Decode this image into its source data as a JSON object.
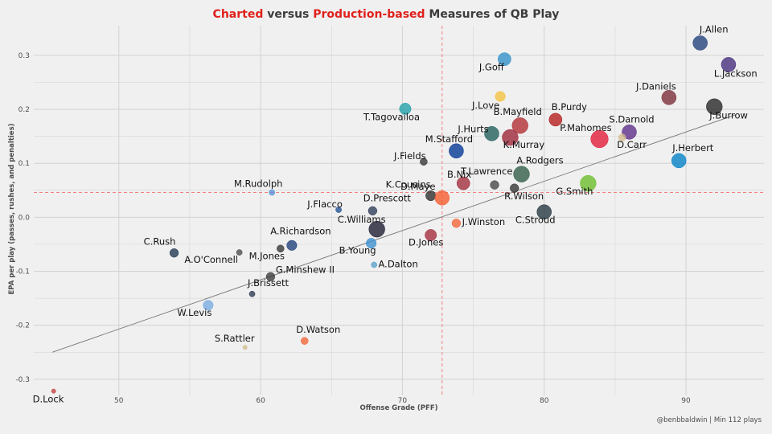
{
  "title": {
    "part1": "Charted",
    "part2": " versus ",
    "part3": "Production-based",
    "part4": " Measures of QB Play"
  },
  "footnote": "@benbbaldwin | Min 112 plays",
  "colors": {
    "title_accent": "#e0201c",
    "reference_line": "#f08080",
    "trend_line": "#777777",
    "grid": "#d2d2d2"
  },
  "chart_data": {
    "type": "scatter",
    "title": "Charted versus Production-based Measures of QB Play",
    "xlabel": "Offense Grade (PFF)",
    "ylabel": "EPA per play (passes, rushes, and penalties)",
    "xlim": [
      44,
      95.5
    ],
    "ylim": [
      -0.33,
      0.355
    ],
    "x_ticks": [
      50,
      60,
      70,
      80,
      90
    ],
    "y_ticks": [
      -0.3,
      -0.2,
      -0.1,
      0.0,
      0.1,
      0.2,
      0.3
    ],
    "x_tick_labels": [
      "50",
      "60",
      "70",
      "80",
      "90"
    ],
    "y_tick_labels": [
      "-0.3",
      "-0.2",
      "-0.1",
      "0.0",
      "0.1",
      "0.2",
      "0.3"
    ],
    "grid": true,
    "reference_lines": {
      "x_mean": 72.8,
      "y_mean": 0.046
    },
    "trend_line": {
      "x": [
        45.3,
        93.5
      ],
      "y": [
        -0.25,
        0.19
      ]
    },
    "points": [
      {
        "label": "J.Allen",
        "x": 91.0,
        "y": 0.323,
        "color": "#1f3f7a",
        "size": 10
      },
      {
        "label": "L.Jackson",
        "x": 93.0,
        "y": 0.283,
        "color": "#442a7a",
        "size": 10
      },
      {
        "label": "J.Goff",
        "x": 77.2,
        "y": 0.293,
        "color": "#2f8fc8",
        "size": 9
      },
      {
        "label": "J.Love",
        "x": 76.9,
        "y": 0.224,
        "color": "#f4c23d",
        "size": 7
      },
      {
        "label": "J.Daniels",
        "x": 88.8,
        "y": 0.222,
        "color": "#7a2a35",
        "size": 10
      },
      {
        "label": "J.Burrow",
        "x": 92.0,
        "y": 0.205,
        "color": "#222222",
        "size": 11
      },
      {
        "label": "T.Tagovailoa",
        "x": 70.2,
        "y": 0.201,
        "color": "#1fa1a8",
        "size": 8
      },
      {
        "label": "B.Purdy",
        "x": 80.8,
        "y": 0.181,
        "color": "#b31a1a",
        "size": 9
      },
      {
        "label": "B.Mayfield",
        "x": 78.3,
        "y": 0.17,
        "color": "#b02a30",
        "size": 11
      },
      {
        "label": "S.Darnold",
        "x": 86.0,
        "y": 0.158,
        "color": "#5b2a86",
        "size": 10
      },
      {
        "label": "J.Hurts",
        "x": 76.3,
        "y": 0.155,
        "color": "#1e5c5a",
        "size": 10
      },
      {
        "label": "K.Murray",
        "x": 77.6,
        "y": 0.148,
        "color": "#9b2235",
        "size": 11
      },
      {
        "label": "P.Mahomes",
        "x": 83.9,
        "y": 0.145,
        "color": "#e31837",
        "size": 12
      },
      {
        "label": "D.Carr",
        "x": 85.5,
        "y": 0.148,
        "color": "#d3bc8d",
        "size": 5
      },
      {
        "label": "M.Stafford",
        "x": 73.8,
        "y": 0.123,
        "color": "#003594",
        "size": 10
      },
      {
        "label": "J.Herbert",
        "x": 89.5,
        "y": 0.105,
        "color": "#0080c6",
        "size": 10
      },
      {
        "label": "J.Fields",
        "x": 71.5,
        "y": 0.103,
        "color": "#333333",
        "size": 5
      },
      {
        "label": "A.Rodgers",
        "x": 78.4,
        "y": 0.08,
        "color": "#2e5a43",
        "size": 11
      },
      {
        "label": "K.Cousins",
        "x": 72.0,
        "y": 0.04,
        "color": "#2a2a2a",
        "size": 7
      },
      {
        "label": "T.Lawrence",
        "x": 74.3,
        "y": 0.063,
        "color": "#a02a3a",
        "size": 9
      },
      {
        "label": "G.Smith",
        "x": 83.1,
        "y": 0.063,
        "color": "#69be28",
        "size": 11
      },
      {
        "label": "R.Wilson",
        "x": 77.9,
        "y": 0.054,
        "color": "#333333",
        "size": 6
      },
      {
        "label": "D.Maye",
        "x": 72.8,
        "y": 0.036,
        "color": "#f55a2a",
        "size": 10
      },
      {
        "label": "B.Nix",
        "x": 76.5,
        "y": 0.06,
        "color": "#444444",
        "size": 6
      },
      {
        "label": "M.Rudolph",
        "x": 60.8,
        "y": 0.046,
        "color": "#5a8ed8",
        "size": 4
      },
      {
        "label": "J.Flacco",
        "x": 65.5,
        "y": 0.014,
        "color": "#1f4f8f",
        "size": 4
      },
      {
        "label": "D.Prescott",
        "x": 67.9,
        "y": 0.012,
        "color": "#2a3a55",
        "size": 6
      },
      {
        "label": "C.Stroud",
        "x": 80.0,
        "y": 0.01,
        "color": "#22343d",
        "size": 10
      },
      {
        "label": "J.Winston",
        "x": 73.8,
        "y": -0.011,
        "color": "#f26436",
        "size": 6
      },
      {
        "label": "C.Williams",
        "x": 68.2,
        "y": -0.022,
        "color": "#1a1a2e",
        "size": 11
      },
      {
        "label": "D.Jones",
        "x": 72.0,
        "y": -0.033,
        "color": "#a32a3a",
        "size": 8
      },
      {
        "label": "C.Rush",
        "x": 53.9,
        "y": -0.066,
        "color": "#1f3550",
        "size": 6
      },
      {
        "label": "A.O'Connell",
        "x": 58.5,
        "y": -0.065,
        "color": "#4a4a4a",
        "size": 4
      },
      {
        "label": "A.Richardson",
        "x": 62.2,
        "y": -0.052,
        "color": "#1f3f7a",
        "size": 7
      },
      {
        "label": "M.Jones",
        "x": 61.4,
        "y": -0.058,
        "color": "#333333",
        "size": 5
      },
      {
        "label": "B.Young",
        "x": 67.8,
        "y": -0.048,
        "color": "#3a8fd0",
        "size": 7
      },
      {
        "label": "A.Dalton",
        "x": 68.0,
        "y": -0.088,
        "color": "#5aa0cc",
        "size": 4
      },
      {
        "label": "G.Minshew II",
        "x": 60.7,
        "y": -0.11,
        "color": "#3a3a3a",
        "size": 6
      },
      {
        "label": "J.Brissett",
        "x": 59.4,
        "y": -0.142,
        "color": "#2a3a50",
        "size": 4
      },
      {
        "label": "W.Levis",
        "x": 56.3,
        "y": -0.163,
        "color": "#78abe0",
        "size": 7
      },
      {
        "label": "D.Watson",
        "x": 63.1,
        "y": -0.229,
        "color": "#f26436",
        "size": 5
      },
      {
        "label": "S.Rattler",
        "x": 58.9,
        "y": -0.241,
        "color": "#d3bc8d",
        "size": 3
      },
      {
        "label": "D.Lock",
        "x": 45.4,
        "y": -0.322,
        "color": "#c83d3d",
        "size": 3
      }
    ]
  }
}
